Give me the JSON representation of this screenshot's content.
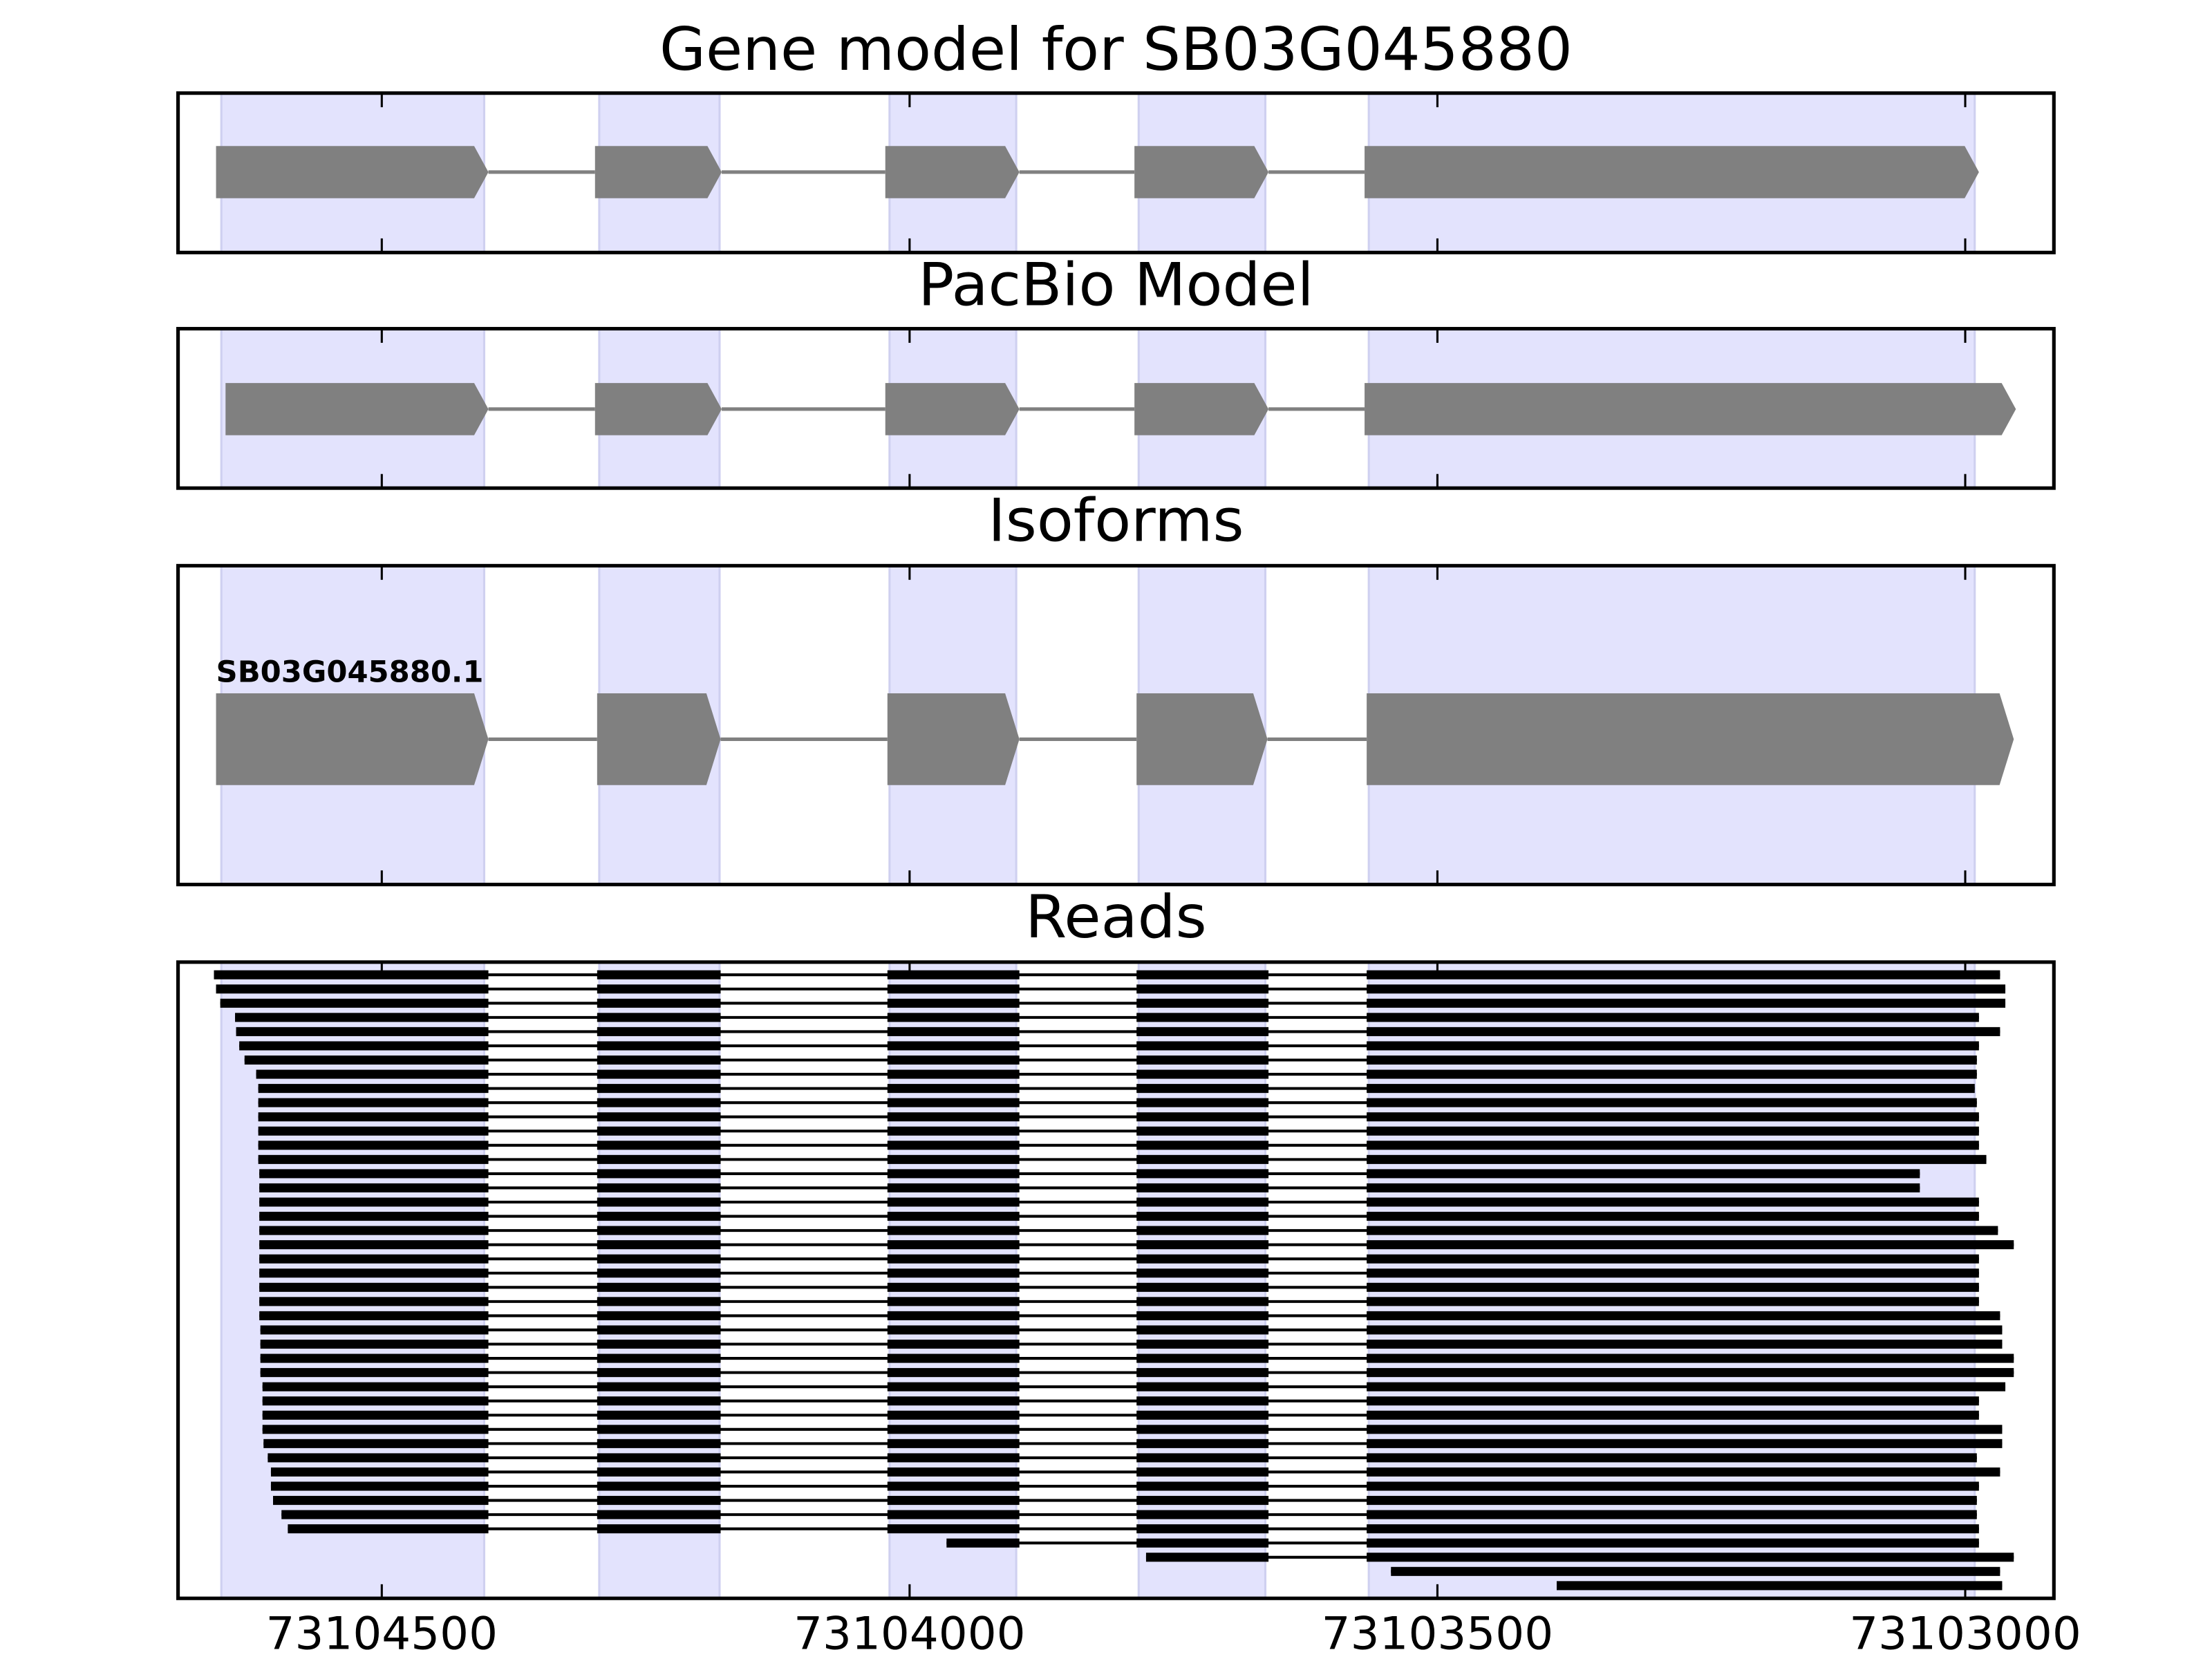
{
  "chart_data": {
    "type": "gene-track",
    "xlim": [
      73104693,
      73102916
    ],
    "xticks": [
      73104500,
      73104000,
      73103500,
      73103000
    ],
    "highlights": [
      [
        73104652,
        73104403
      ],
      [
        73104294,
        73104180
      ],
      [
        73104019,
        73103899
      ],
      [
        73103783,
        73103663
      ],
      [
        73103565,
        73102991
      ]
    ],
    "panels": [
      {
        "title": "Gene model for SB03G045880",
        "exons": [
          [
            73104657,
            73104399
          ],
          [
            73104298,
            73104178
          ],
          [
            73104023,
            73103896
          ],
          [
            73103787,
            73103660
          ],
          [
            73103569,
            73102987
          ]
        ]
      },
      {
        "title": "PacBio Model",
        "exons": [
          [
            73104648,
            73104399
          ],
          [
            73104298,
            73104178
          ],
          [
            73104023,
            73103896
          ],
          [
            73103787,
            73103660
          ],
          [
            73103569,
            73102952
          ]
        ]
      },
      {
        "title": "Isoforms",
        "label": "SB03G045880.1",
        "exons": [
          [
            73104657,
            73104399
          ],
          [
            73104296,
            73104179
          ],
          [
            73104021,
            73103896
          ],
          [
            73103785,
            73103661
          ],
          [
            73103567,
            73102954
          ]
        ]
      },
      {
        "title": "Reads",
        "introns": [
          [
            73104399,
            73104296
          ],
          [
            73104179,
            73104021
          ],
          [
            73103896,
            73103785
          ],
          [
            73103660,
            73103567
          ]
        ],
        "reads": [
          [
            73104659,
            73102967
          ],
          [
            73104657,
            73102962
          ],
          [
            73104653,
            73102962
          ],
          [
            73104639,
            73102987
          ],
          [
            73104638,
            73102967
          ],
          [
            73104635,
            73102987
          ],
          [
            73104630,
            73102989
          ],
          [
            73104619,
            73102989
          ],
          [
            73104617,
            73102991
          ],
          [
            73104617,
            73102989
          ],
          [
            73104617,
            73102987
          ],
          [
            73104617,
            73102987
          ],
          [
            73104617,
            73102987
          ],
          [
            73104617,
            73102980
          ],
          [
            73104616,
            73103043
          ],
          [
            73104616,
            73103043
          ],
          [
            73104616,
            73102987
          ],
          [
            73104616,
            73102987
          ],
          [
            73104616,
            73102969
          ],
          [
            73104616,
            73102954
          ],
          [
            73104616,
            73102987
          ],
          [
            73104616,
            73102987
          ],
          [
            73104616,
            73102987
          ],
          [
            73104616,
            73102987
          ],
          [
            73104616,
            73102967
          ],
          [
            73104615,
            73102965
          ],
          [
            73104615,
            73102965
          ],
          [
            73104615,
            73102954
          ],
          [
            73104615,
            73102954
          ],
          [
            73104613,
            73102962
          ],
          [
            73104613,
            73102987
          ],
          [
            73104613,
            73102987
          ],
          [
            73104613,
            73102965
          ],
          [
            73104612,
            73102965
          ],
          [
            73104608,
            73102989
          ],
          [
            73104605,
            73102967
          ],
          [
            73104605,
            73102987
          ],
          [
            73104603,
            73102989
          ],
          [
            73104595,
            73102989
          ],
          [
            73104589,
            73102987
          ],
          [
            73103965,
            73102987
          ],
          [
            73103776,
            73102954
          ],
          [
            73103544,
            73102967
          ],
          [
            73103387,
            73102965
          ]
        ]
      }
    ]
  }
}
